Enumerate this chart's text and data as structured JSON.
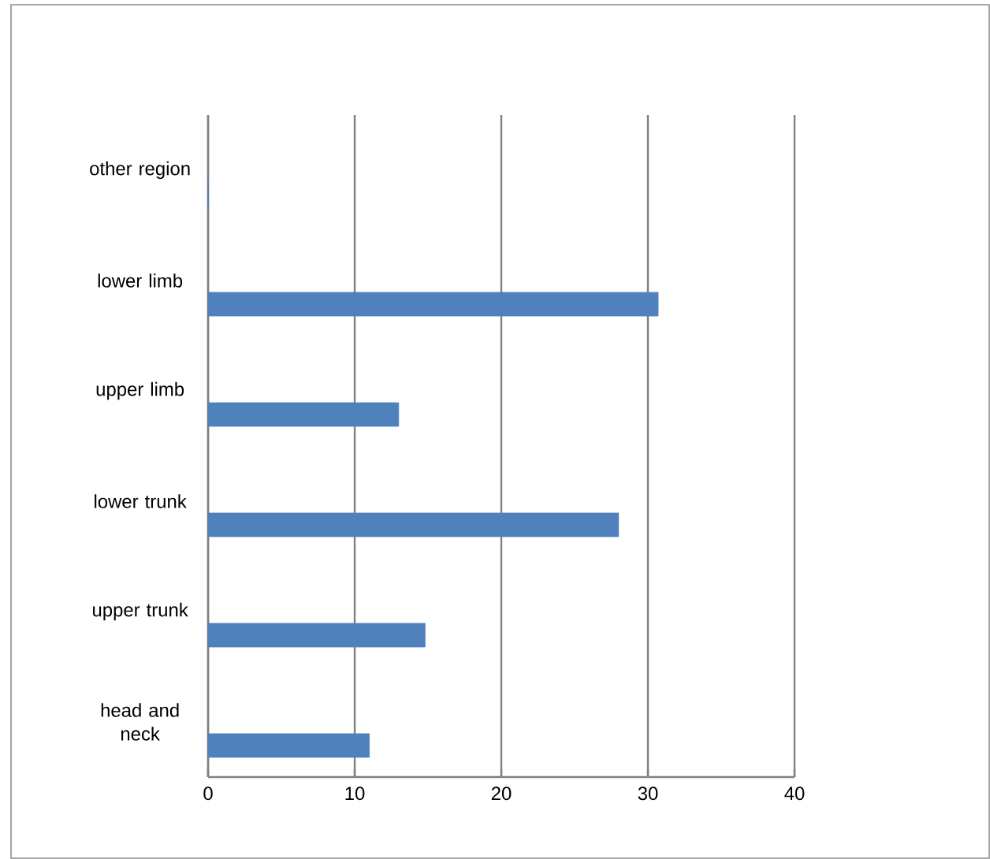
{
  "chart_data": {
    "type": "bar",
    "orientation": "horizontal",
    "categories": [
      "other region",
      "lower limb",
      "upper limb",
      "lower trunk",
      "upper trunk",
      "head and neck"
    ],
    "values": [
      0,
      30.7,
      13.0,
      28.0,
      14.8,
      11.0
    ],
    "color": "#4f81bd",
    "xlim": [
      0,
      40
    ],
    "xticks": [
      0,
      10,
      20,
      30,
      40
    ],
    "grid": "x"
  }
}
